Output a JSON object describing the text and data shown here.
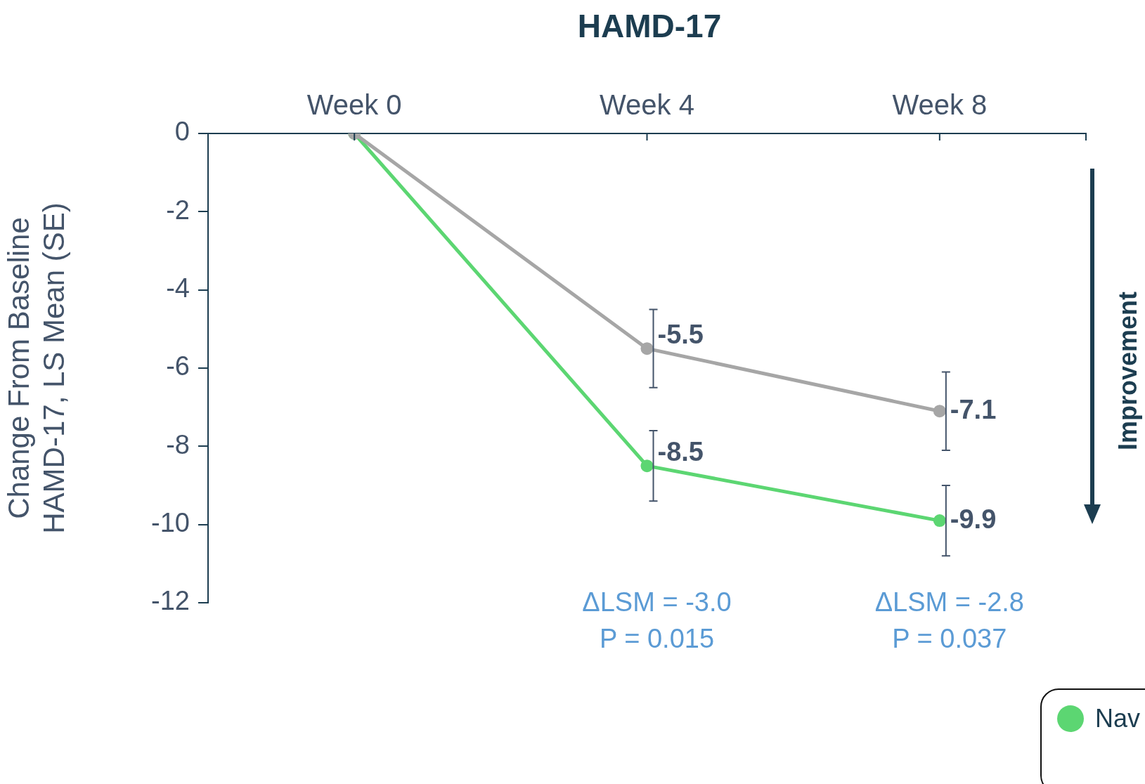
{
  "chart_data": {
    "type": "line",
    "title": "HAMD-17",
    "ylabel": "Change From Baseline\nHAMD-17, LS Mean (SE)",
    "categories": [
      "Week 0",
      "Week 4",
      "Week 8"
    ],
    "series": [
      {
        "color": "#a6a6a6",
        "values": [
          0,
          -5.5,
          -7.1
        ],
        "errors": [
          null,
          1.0,
          1.0
        ],
        "value_labels": [
          null,
          "-5.5",
          "-7.1"
        ]
      },
      {
        "name": "Nav",
        "color": "#5cd672",
        "values": [
          0,
          -8.5,
          -9.9
        ],
        "errors": [
          null,
          0.9,
          0.9
        ],
        "value_labels": [
          null,
          "-8.5",
          "-9.9"
        ]
      }
    ],
    "ylim": [
      -12,
      0
    ],
    "yticks": [
      0,
      -2,
      -4,
      -6,
      -8,
      -10,
      -12
    ],
    "grid": false,
    "marker": "circle",
    "legend": "bottom right",
    "annotations": [
      "ΔLSM = -3.0\nP = 0.015",
      "ΔLSM = -2.8\nP = 0.037",
      "Improvement"
    ]
  }
}
